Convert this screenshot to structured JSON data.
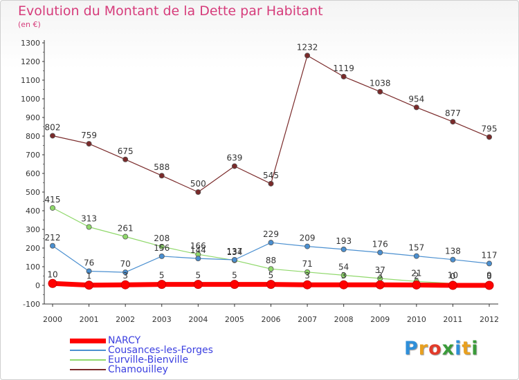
{
  "title": "Evolution du Montant de la Dette par Habitant",
  "unit": "(en €)",
  "logo": {
    "text": "Proxiti",
    "colors": [
      "#2f8fd9",
      "#e8a020",
      "#e23b2a",
      "#3a9b3a",
      "#2f8fd9",
      "#e8a020",
      "#3a9b3a"
    ]
  },
  "chart_data": {
    "type": "line",
    "x": [
      2000,
      2001,
      2002,
      2003,
      2004,
      2005,
      2006,
      2007,
      2008,
      2009,
      2010,
      2011,
      2012
    ],
    "ylim": [
      -100,
      1300
    ],
    "yticks": [
      -100,
      0,
      100,
      200,
      300,
      400,
      500,
      600,
      700,
      800,
      900,
      1000,
      1100,
      1200,
      1300
    ],
    "grid": false,
    "legend_position": "bottom-left",
    "series": [
      {
        "name": "NARCY",
        "color": "#ff0000",
        "values": [
          10,
          1,
          3,
          5,
          5,
          5,
          5,
          3,
          3,
          3,
          2,
          0,
          0
        ],
        "labels": [
          "10",
          "1",
          "3",
          "5",
          "5",
          "5",
          "5",
          "3",
          "3",
          "3",
          "2",
          "0",
          "0"
        ]
      },
      {
        "name": "Cousances-les-Forges",
        "color": "#4a8fd0",
        "values": [
          212,
          76,
          70,
          156,
          144,
          137,
          229,
          209,
          193,
          176,
          157,
          138,
          117
        ],
        "labels": [
          "212",
          "76",
          "70",
          "156",
          "144",
          "137",
          "229",
          "209",
          "193",
          "176",
          "157",
          "138",
          "117"
        ]
      },
      {
        "name": "Eurville-Bienville",
        "color": "#8fd86a",
        "values": [
          415,
          313,
          261,
          208,
          166,
          134,
          88,
          71,
          54,
          37,
          21,
          10,
          9
        ],
        "labels": [
          "415",
          "313",
          "261",
          "208",
          "166",
          "134",
          "88",
          "71",
          "54",
          "37",
          "21",
          "10",
          "9"
        ]
      },
      {
        "name": "Chamouilley",
        "color": "#7a2a2a",
        "values": [
          802,
          759,
          675,
          588,
          500,
          639,
          545,
          1232,
          1119,
          1038,
          954,
          877,
          795
        ],
        "labels": [
          "802",
          "759",
          "675",
          "588",
          "500",
          "639",
          "545",
          "1232",
          "1119",
          "1038",
          "954",
          "877",
          "795"
        ]
      }
    ]
  }
}
